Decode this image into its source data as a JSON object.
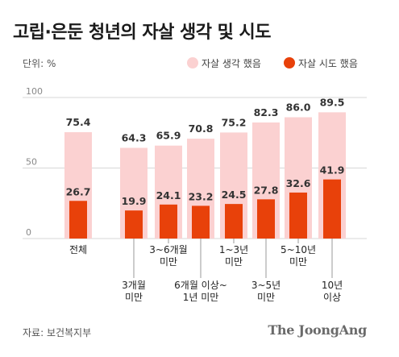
{
  "title": "고립·은둔 청년의 자살 생각 및 시도",
  "unit_label": "단위: %",
  "source": "자료: 보건복지부",
  "brand": "The JoongAng",
  "chart_data": {
    "type": "bar",
    "title": "고립·은둔 청년의 자살 생각 및 시도",
    "ylim": [
      0,
      100
    ],
    "yticks": [
      0,
      50,
      100
    ],
    "grid": true,
    "legend_position": "top-right",
    "colors": {
      "thought": "#fbd1d1",
      "attempt": "#e8410a",
      "grid": "#d7d7d7"
    },
    "categories": [
      {
        "lines": [
          "전체"
        ],
        "row": "top"
      },
      {
        "lines": [
          "3개월",
          "미만"
        ],
        "row": "bottom"
      },
      {
        "lines": [
          "3~6개월",
          "미만"
        ],
        "row": "top"
      },
      {
        "lines": [
          "6개월 이상~",
          "1년 미만"
        ],
        "row": "bottom"
      },
      {
        "lines": [
          "1~3년",
          "미만"
        ],
        "row": "top"
      },
      {
        "lines": [
          "3~5년",
          "미만"
        ],
        "row": "bottom"
      },
      {
        "lines": [
          "5~10년",
          "미만"
        ],
        "row": "top"
      },
      {
        "lines": [
          "10년",
          "이상"
        ],
        "row": "bottom"
      }
    ],
    "series": [
      {
        "name": "자살 생각 했음",
        "values": [
          75.4,
          64.3,
          65.9,
          70.8,
          75.2,
          82.3,
          86.0,
          89.5
        ]
      },
      {
        "name": "자살 시도 했음",
        "values": [
          26.7,
          19.9,
          24.1,
          23.2,
          24.5,
          27.8,
          32.6,
          41.9
        ]
      }
    ]
  }
}
